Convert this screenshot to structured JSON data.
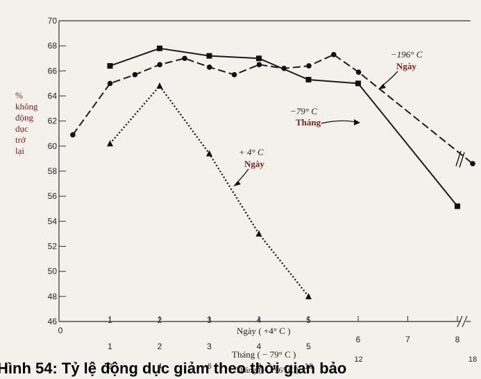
{
  "chart_data": {
    "type": "line",
    "ylabel_lines": [
      "%",
      "không",
      "động",
      "dục",
      "trở",
      "lại"
    ],
    "ylim": [
      46,
      70
    ],
    "yticks": [
      46,
      48,
      50,
      52,
      54,
      56,
      58,
      60,
      62,
      64,
      66,
      68,
      70
    ],
    "x_axis_zero_label": "0",
    "x_scales": [
      {
        "name": "Ngày ( +4° C )",
        "ticks": [
          "1",
          "2",
          "3",
          "4",
          "5"
        ],
        "tick_positions": [
          1,
          2,
          3,
          4,
          5
        ]
      },
      {
        "name": "Tháng ( − 79° C )",
        "ticks": [
          "1",
          "2",
          "3",
          "4",
          "5",
          "6",
          "7",
          "8"
        ],
        "tick_positions": [
          1,
          2,
          3,
          4,
          5,
          6,
          7,
          8
        ]
      },
      {
        "name": "Tháng ( − 196° C )",
        "ticks": [
          "2",
          "4",
          "6",
          "8",
          "10",
          "12",
          "18"
        ],
        "tick_positions": [
          2,
          4,
          6,
          8,
          10,
          12,
          18
        ]
      }
    ],
    "series": [
      {
        "name": "+ 4° C Ngày",
        "marker": "triangle",
        "line_style": "dotted",
        "x_scale": "Ngày ( +4° C )",
        "points": [
          [
            1,
            60.2
          ],
          [
            2,
            64.8
          ],
          [
            3,
            59.4
          ],
          [
            4,
            53
          ],
          [
            5,
            48
          ]
        ]
      },
      {
        "name": "−79° C Tháng",
        "marker": "square",
        "line_style": "solid",
        "x_scale": "Tháng ( − 79° C )",
        "points": [
          [
            1,
            66.4
          ],
          [
            2,
            67.8
          ],
          [
            3,
            67.2
          ],
          [
            4,
            67
          ],
          [
            5,
            65.3
          ],
          [
            6,
            65
          ],
          [
            8,
            55.2
          ]
        ]
      },
      {
        "name": "−196° C Ngày",
        "marker": "circle",
        "line_style": "dashed",
        "x_scale": "Tháng ( − 196° C )",
        "points": [
          [
            0.5,
            60.9
          ],
          [
            2,
            65
          ],
          [
            3,
            65.7
          ],
          [
            4,
            66.5
          ],
          [
            5,
            67
          ],
          [
            6,
            66.3
          ],
          [
            7,
            65.7
          ],
          [
            8,
            66.5
          ],
          [
            9,
            66.2
          ],
          [
            10,
            66.4
          ],
          [
            11,
            67.3
          ],
          [
            12,
            65.9
          ],
          [
            18,
            58.6
          ]
        ]
      }
    ],
    "annotations": [
      {
        "text_lines": [
          "−196° C",
          "Ngày"
        ],
        "target_series": "−196° C Ngày"
      },
      {
        "text_lines": [
          "−79° C",
          "Tháng"
        ],
        "target_series": "−79° C Tháng"
      },
      {
        "text_lines": [
          "+ 4° C",
          "Ngày"
        ],
        "target_series": "+ 4° C Ngày"
      }
    ],
    "grid": false,
    "legend": "none"
  },
  "caption": "Hình 54: Tỷ lệ động dục giảm theo thời gian bảo"
}
